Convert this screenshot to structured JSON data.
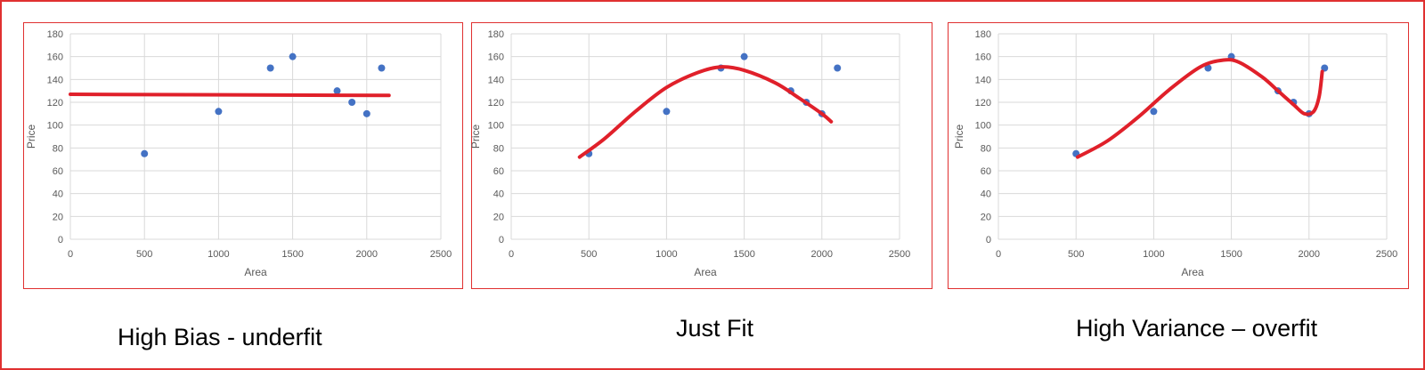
{
  "colors": {
    "frame": "#e03030",
    "point": "#4472c4",
    "curve": "#e0202a",
    "grid": "#d9d9d9",
    "text": "#595959"
  },
  "chart_data": [
    {
      "type": "scatter",
      "xlabel": "Area",
      "ylabel": "Price",
      "xlim": [
        0,
        2500
      ],
      "ylim": [
        0,
        180
      ],
      "xticks": [
        "0",
        "500",
        "1000",
        "1500",
        "2000",
        "2500"
      ],
      "yticks": [
        "0",
        "20",
        "40",
        "60",
        "80",
        "100",
        "120",
        "140",
        "160",
        "180"
      ],
      "grid": true,
      "points": {
        "x": [
          500,
          1000,
          1350,
          1500,
          1800,
          1900,
          2000,
          2100
        ],
        "y": [
          75,
          112,
          150,
          160,
          130,
          120,
          110,
          150
        ]
      },
      "fit": {
        "x": [
          0,
          2150
        ],
        "y": [
          127,
          126
        ]
      },
      "caption": "High Bias - underfit"
    },
    {
      "type": "scatter",
      "xlabel": "Area",
      "ylabel": "Price",
      "xlim": [
        0,
        2500
      ],
      "ylim": [
        0,
        180
      ],
      "xticks": [
        "0",
        "500",
        "1000",
        "1500",
        "2000",
        "2500"
      ],
      "yticks": [
        "0",
        "20",
        "40",
        "60",
        "80",
        "100",
        "120",
        "140",
        "160",
        "180"
      ],
      "grid": true,
      "points": {
        "x": [
          500,
          1000,
          1350,
          1500,
          1800,
          1900,
          2000,
          2100
        ],
        "y": [
          75,
          112,
          150,
          160,
          130,
          120,
          110,
          150
        ]
      },
      "fit": {
        "x": [
          440,
          600,
          800,
          1000,
          1200,
          1350,
          1500,
          1700,
          1850,
          2000,
          2060
        ],
        "y": [
          72,
          88,
          112,
          133,
          146,
          151,
          148,
          137,
          124,
          110,
          103
        ]
      },
      "caption": "Just Fit"
    },
    {
      "type": "scatter",
      "xlabel": "Area",
      "ylabel": "Price",
      "xlim": [
        0,
        2500
      ],
      "ylim": [
        0,
        180
      ],
      "xticks": [
        "0",
        "500",
        "1000",
        "1500",
        "2000",
        "2500"
      ],
      "yticks": [
        "0",
        "20",
        "40",
        "60",
        "80",
        "100",
        "120",
        "140",
        "160",
        "180"
      ],
      "grid": true,
      "points": {
        "x": [
          500,
          1000,
          1350,
          1500,
          1800,
          1900,
          2000,
          2100
        ],
        "y": [
          75,
          112,
          150,
          160,
          130,
          120,
          110,
          150
        ]
      },
      "fit": {
        "x": [
          510,
          700,
          900,
          1100,
          1300,
          1450,
          1550,
          1700,
          1800,
          1900,
          1970,
          2030,
          2065,
          2085
        ],
        "y": [
          72,
          86,
          107,
          131,
          151,
          157,
          155,
          142,
          130,
          118,
          110,
          112,
          125,
          147
        ]
      },
      "caption": "High Variance – overfit"
    }
  ]
}
